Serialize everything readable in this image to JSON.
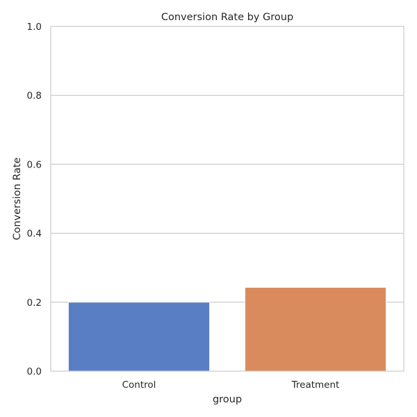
{
  "chart_data": {
    "type": "bar",
    "title": "Conversion Rate by Group",
    "xlabel": "group",
    "ylabel": "Conversion Rate",
    "categories": [
      "Control",
      "Treatment"
    ],
    "values": [
      0.2,
      0.243
    ],
    "colors": [
      "#5a7ec4",
      "#d98b5d"
    ],
    "ylim": [
      0,
      1
    ],
    "yticks": [
      "0.0",
      "0.2",
      "0.4",
      "0.6",
      "0.8",
      "1.0"
    ],
    "grid": true
  }
}
